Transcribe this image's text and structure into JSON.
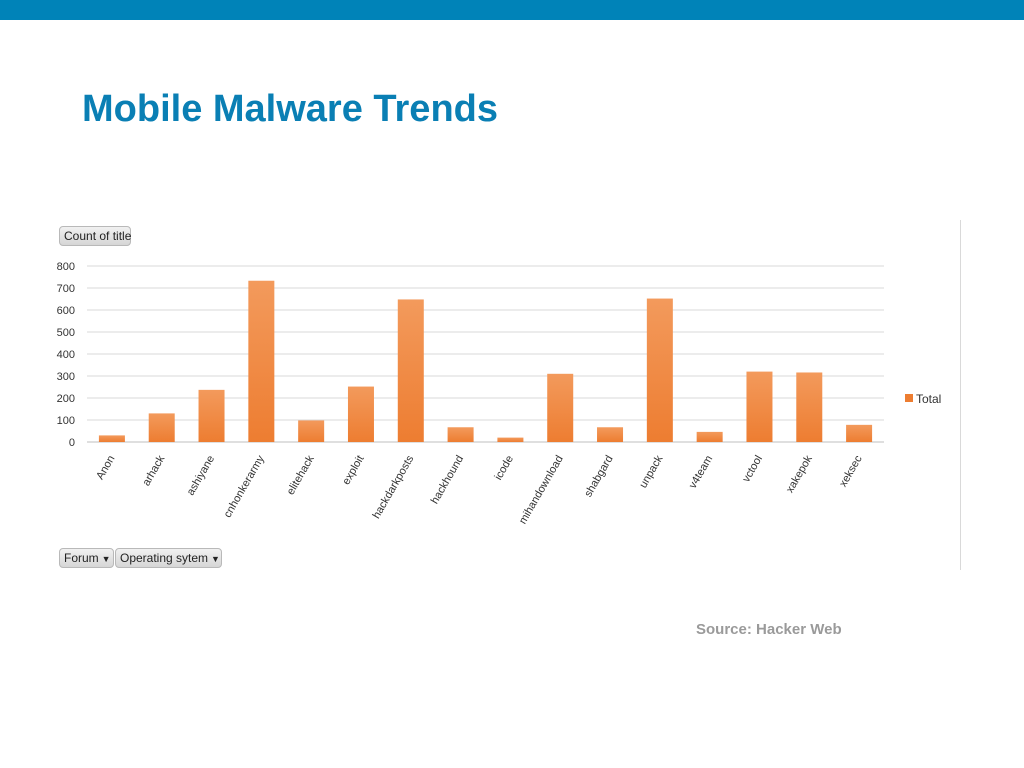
{
  "slide": {
    "title": "Mobile Malware Trends",
    "source": "Source: Hacker Web",
    "accent": "#0083b8"
  },
  "pivot": {
    "value_field": "Count of title",
    "row_field": "Forum",
    "filter_field": "Operating sytem"
  },
  "chart_data": {
    "type": "bar",
    "categories": [
      "Anon",
      "arhack",
      "ashiyane",
      "cnhonkerarmy",
      "elitehack",
      "exploit",
      "hackdarkposts",
      "hackhound",
      "icode",
      "mihandownload",
      "shabgard",
      "unpack",
      "v4team",
      "vctool",
      "xakepok",
      "xeksec"
    ],
    "series": [
      {
        "name": "Total",
        "values": [
          30,
          130,
          237,
          733,
          98,
          252,
          648,
          67,
          20,
          310,
          67,
          652,
          46,
          320,
          316,
          78
        ],
        "color": "#ed7d31"
      }
    ],
    "title": "",
    "xlabel": "",
    "ylabel": "",
    "ylim": [
      0,
      800
    ],
    "yticks": [
      "0",
      "100",
      "200",
      "300",
      "400",
      "500",
      "600",
      "700",
      "800"
    ],
    "grid": true,
    "legend_position": "right"
  }
}
